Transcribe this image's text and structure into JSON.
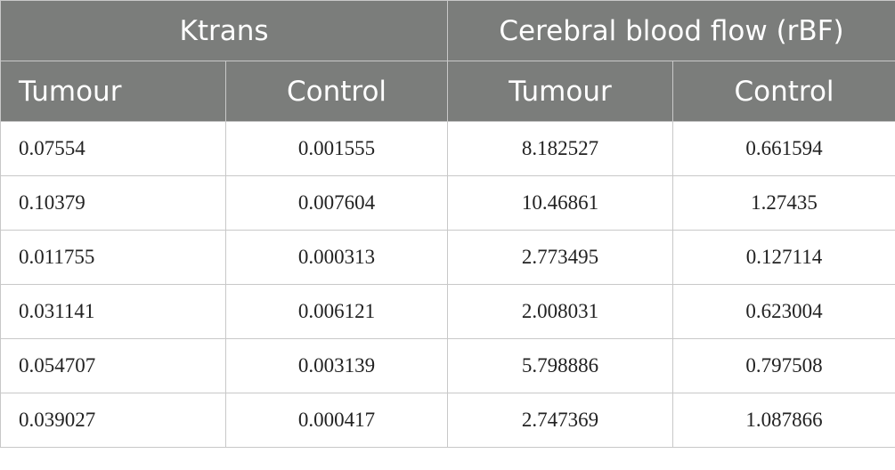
{
  "table": {
    "group_headers": [
      "Ktrans",
      "Cerebral blood flow (rBF)"
    ],
    "sub_headers": [
      "Tumour",
      "Control",
      "Tumour",
      "Control"
    ],
    "rows": [
      [
        "0.07554",
        "0.001555",
        "8.182527",
        "0.661594"
      ],
      [
        "0.10379",
        "0.007604",
        "10.46861",
        "1.27435"
      ],
      [
        "0.011755",
        "0.000313",
        "2.773495",
        "0.127114"
      ],
      [
        "0.031141",
        "0.006121",
        "2.008031",
        "0.623004"
      ],
      [
        "0.054707",
        "0.003139",
        "5.798886",
        "0.797508"
      ],
      [
        "0.039027",
        "0.000417",
        "2.747369",
        "1.087866"
      ]
    ]
  }
}
